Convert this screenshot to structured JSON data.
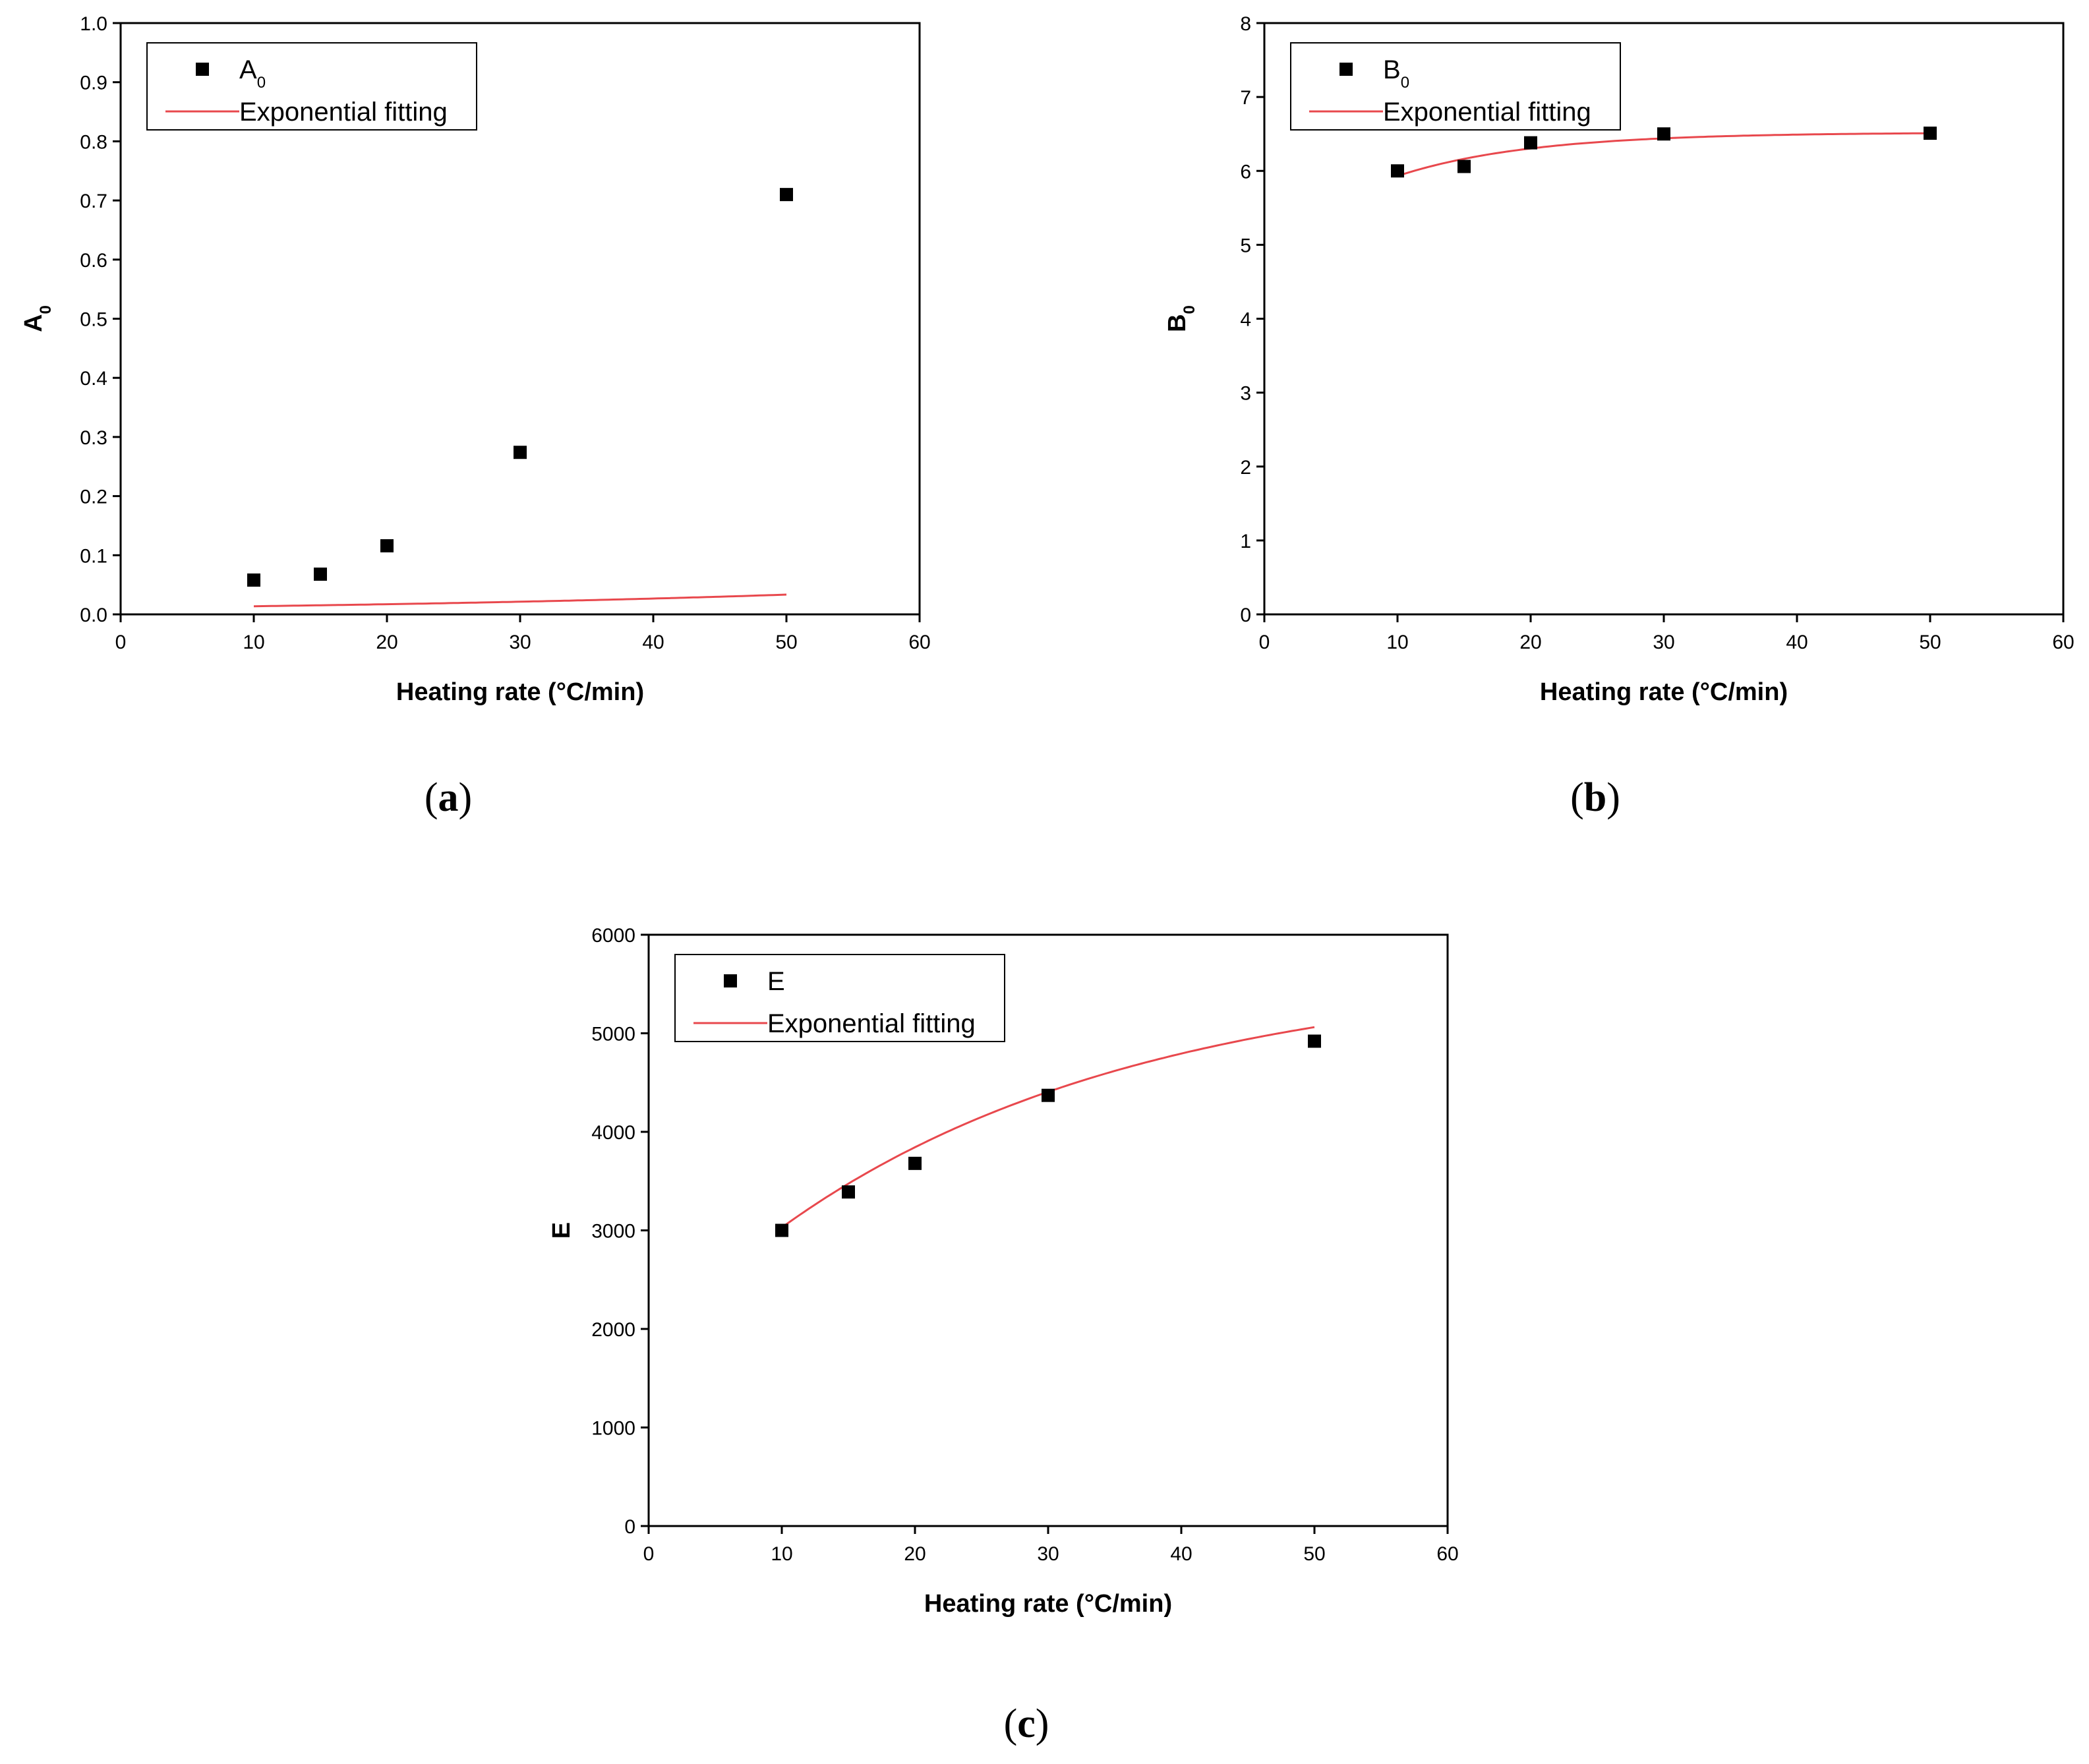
{
  "colors": {
    "marker": "#000000",
    "fit": "#e8484d",
    "axis": "#000000"
  },
  "chart_data": [
    {
      "id": "a",
      "type": "scatter",
      "panel_label": "a",
      "xlabel": "Heating rate (°C/min)",
      "ylabel": {
        "main": "A",
        "sub": "0"
      },
      "xlim": [
        0,
        60
      ],
      "ylim": [
        0,
        1
      ],
      "xticks": [
        0,
        10,
        20,
        30,
        40,
        50,
        60
      ],
      "yticks": [
        0,
        0.1,
        0.2,
        0.3,
        0.4,
        0.5,
        0.6,
        0.7,
        0.8,
        0.9,
        1
      ],
      "ytick_labels": [
        "0.0",
        "0.1",
        "0.2",
        "0.3",
        "0.4",
        "0.5",
        "0.6",
        "0.7",
        "0.8",
        "0.9",
        "1.0"
      ],
      "legend_position": "top-left",
      "series": [
        {
          "name": {
            "main": "A",
            "sub": "0"
          },
          "kind": "marker",
          "x": [
            10,
            15,
            20,
            30,
            50
          ],
          "y": [
            0.058,
            0.068,
            0.116,
            0.274,
            0.71
          ]
        },
        {
          "name": {
            "main": "Exponential fitting",
            "sub": ""
          },
          "kind": "fit",
          "model": {
            "A": 0.011,
            "t": -45.0,
            "y0": 0.0
          },
          "x_range": [
            10,
            50
          ]
        }
      ]
    },
    {
      "id": "b",
      "type": "scatter",
      "panel_label": "b",
      "xlabel": "Heating rate (°C/min)",
      "ylabel": {
        "main": "B",
        "sub": "0"
      },
      "xlim": [
        0,
        60
      ],
      "ylim": [
        0,
        8
      ],
      "xticks": [
        0,
        10,
        20,
        30,
        40,
        50,
        60
      ],
      "yticks": [
        0,
        1,
        2,
        3,
        4,
        5,
        6,
        7,
        8
      ],
      "ytick_labels": [
        "0",
        "1",
        "2",
        "3",
        "4",
        "5",
        "6",
        "7",
        "8"
      ],
      "legend_position": "top-left",
      "series": [
        {
          "name": {
            "main": "B",
            "sub": "0"
          },
          "kind": "marker",
          "x": [
            10,
            15,
            20,
            30,
            50
          ],
          "y": [
            6.0,
            6.06,
            6.38,
            6.5,
            6.51
          ]
        },
        {
          "name": {
            "main": "Exponential fitting",
            "sub": ""
          },
          "kind": "fit",
          "model": {
            "A": -1.6,
            "t": 10.0,
            "y0": 6.52
          },
          "x_range": [
            10,
            50
          ]
        }
      ]
    },
    {
      "id": "c",
      "type": "scatter",
      "panel_label": "c",
      "xlabel": "Heating rate (°C/min)",
      "ylabel": {
        "main": "E",
        "sub": ""
      },
      "xlim": [
        0,
        60
      ],
      "ylim": [
        0,
        6000
      ],
      "xticks": [
        0,
        10,
        20,
        30,
        40,
        50,
        60
      ],
      "yticks": [
        0,
        1000,
        2000,
        3000,
        4000,
        5000,
        6000
      ],
      "ytick_labels": [
        "0",
        "1000",
        "2000",
        "3000",
        "4000",
        "5000",
        "6000"
      ],
      "legend_position": "top-left",
      "series": [
        {
          "name": {
            "main": "E",
            "sub": ""
          },
          "kind": "marker",
          "x": [
            10,
            15,
            20,
            30,
            50
          ],
          "y": [
            3000,
            3390,
            3680,
            4370,
            4920
          ]
        },
        {
          "name": {
            "main": "Exponential fitting",
            "sub": ""
          },
          "kind": "fit",
          "model": {
            "A": -3810,
            "t": 27.0,
            "y0": 5660
          },
          "x_range": [
            10,
            50
          ]
        }
      ]
    }
  ]
}
